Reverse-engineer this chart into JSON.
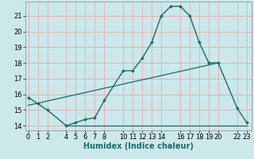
{
  "xlabel": "Humidex (Indice chaleur)",
  "bg_color": "#cce8ea",
  "grid_color": "#e8a0a0",
  "line_color": "#1a6b6b",
  "line1_x": [
    0,
    1,
    2,
    4,
    5,
    6,
    7,
    8,
    10,
    11,
    12,
    13,
    14,
    15,
    16,
    17,
    18,
    19,
    20,
    22,
    23
  ],
  "line1_y": [
    15.8,
    15.4,
    15.0,
    14.0,
    14.2,
    14.4,
    14.5,
    15.6,
    17.5,
    17.5,
    18.3,
    19.3,
    21.0,
    21.6,
    21.6,
    21.0,
    19.3,
    18.0,
    18.0,
    15.1,
    14.2
  ],
  "line2_x": [
    0,
    20
  ],
  "line2_y": [
    15.3,
    18.0
  ],
  "line3_x": [
    4,
    23
  ],
  "line3_y": [
    14.0,
    14.0
  ],
  "xlim": [
    -0.3,
    23.5
  ],
  "ylim": [
    13.7,
    21.9
  ],
  "xticks": [
    0,
    1,
    2,
    4,
    5,
    6,
    7,
    8,
    10,
    11,
    12,
    13,
    14,
    16,
    17,
    18,
    19,
    20,
    22,
    23
  ],
  "yticks": [
    14,
    15,
    16,
    17,
    18,
    19,
    20,
    21
  ],
  "tick_fontsize": 6,
  "xlabel_fontsize": 7
}
